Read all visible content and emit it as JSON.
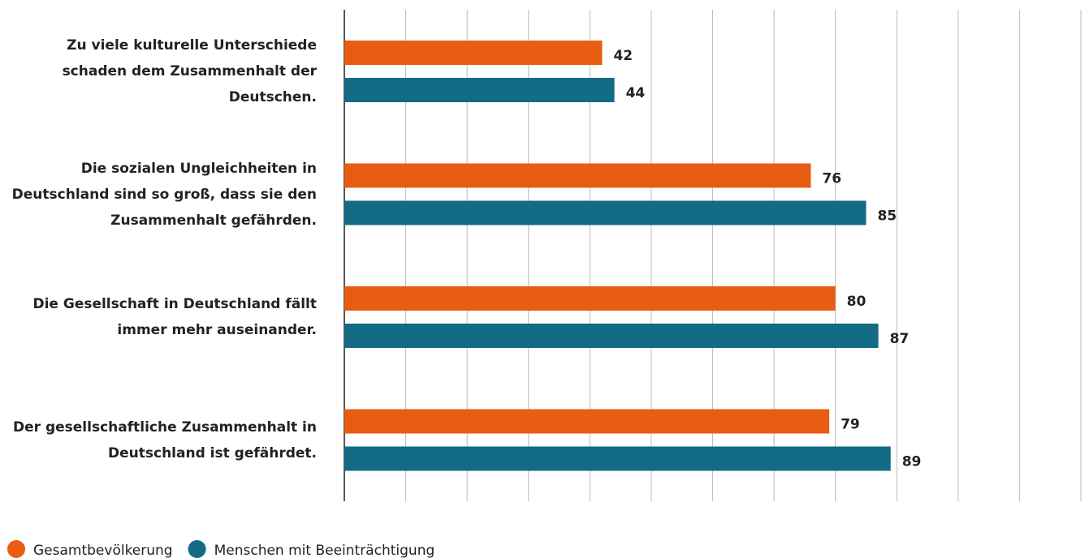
{
  "chart_data": {
    "type": "bar",
    "orientation": "horizontal",
    "categories": [
      "Zu viele kulturelle Unterschiede schaden dem Zusammenhalt der Deutschen.",
      "Die sozialen Ungleichheiten in Deutschland sind so groß, dass sie den Zusammenhalt gefährden.",
      "Die Gesellschaft in Deutschland fällt immer mehr auseinander.",
      "Der gesellschaftliche Zusammenhalt in Deutschland ist gefährdet."
    ],
    "series": [
      {
        "name": "Gesamtbevölkerung",
        "color": "#e85d12",
        "values": [
          42,
          76,
          80,
          79
        ]
      },
      {
        "name": "Menschen mit Beeinträchtigung",
        "color": "#136b85",
        "values": [
          44,
          85,
          87,
          89
        ]
      }
    ],
    "xlim": [
      0,
      120
    ],
    "xticks": [
      0,
      10,
      20,
      30,
      40,
      50,
      60,
      70,
      80,
      90,
      100,
      110,
      120
    ],
    "grid": true,
    "legend": "bottom-left"
  }
}
